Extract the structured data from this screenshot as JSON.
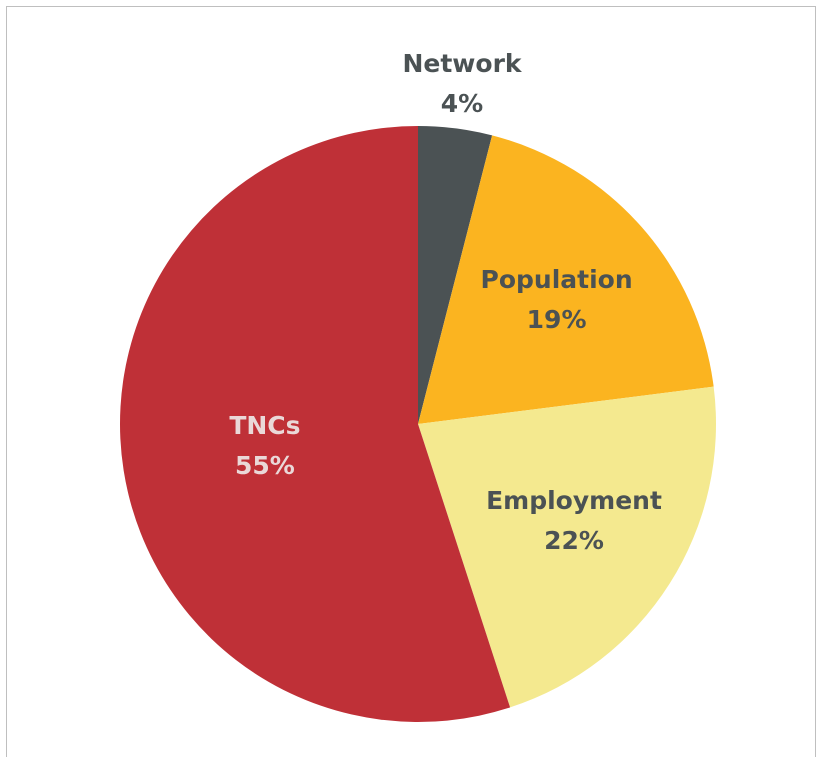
{
  "chart_data": {
    "type": "pie",
    "title": "",
    "slices": [
      {
        "label": "Network",
        "value": 4,
        "value_label": "4%",
        "color": "#4b5254",
        "text_color": "#4b5254",
        "label_position": "outside-top"
      },
      {
        "label": "Population",
        "value": 19,
        "value_label": "19%",
        "color": "#fbb420",
        "text_color": "#4b5254",
        "label_position": "inside"
      },
      {
        "label": "Employment",
        "value": 22,
        "value_label": "22%",
        "color": "#f4e98f",
        "text_color": "#4b5254",
        "label_position": "inside"
      },
      {
        "label": "TNCs",
        "value": 55,
        "value_label": "55%",
        "color": "#bf3037",
        "text_color": "#ead8d8",
        "label_position": "inside"
      }
    ],
    "start": "12 o'clock",
    "direction": "clockwise",
    "legend": "none"
  }
}
